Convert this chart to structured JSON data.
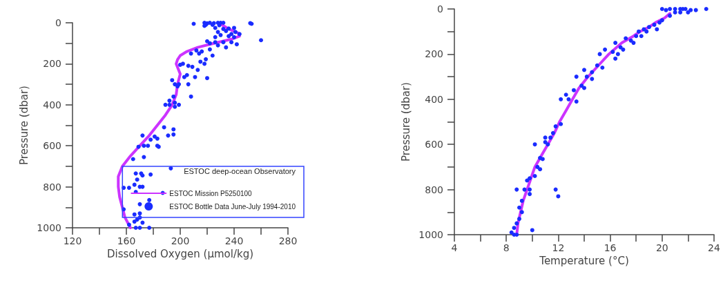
{
  "chart_data": [
    {
      "type": "scatter",
      "xlabel": "Dissolved Oxygen (µmol/kg)",
      "ylabel": "Pressure (dbar)",
      "legend_title": "ESTOC deep-ocean Observatory",
      "legend": "bottom right",
      "xlim": [
        120,
        280
      ],
      "xticks": [
        120,
        {
          "value": 140,
          "label": null
        },
        160,
        {
          "value": 180,
          "label": null
        },
        200,
        {
          "value": 220,
          "label": null
        },
        240,
        {
          "value": 260,
          "label": null
        },
        280
      ],
      "ylim": [
        1000,
        0
      ],
      "yticks": [
        0,
        {
          "value": 100,
          "label": null
        },
        200,
        {
          "value": 300,
          "label": null
        },
        400,
        {
          "value": 500,
          "label": null
        },
        600,
        {
          "value": 700,
          "label": null
        },
        800,
        {
          "value": 900,
          "label": null
        },
        1000
      ],
      "series": [
        {
          "name": "ESTOC Mission P5250100",
          "type": "line",
          "marker": "none",
          "color": "#cc33ff",
          "x": [
            231,
            236,
            243,
            244,
            238,
            225,
            213,
            205,
            200,
            198,
            197,
            200,
            198,
            197,
            194,
            189,
            183,
            177,
            170,
            163,
            157,
            154,
            154,
            155,
            157,
            159,
            163
          ],
          "values": [
            10,
            30,
            50,
            65,
            80,
            100,
            120,
            140,
            160,
            180,
            200,
            250,
            300,
            350,
            400,
            450,
            500,
            550,
            600,
            650,
            700,
            750,
            800,
            850,
            900,
            950,
            1000
          ]
        },
        {
          "name": "ESTOC Bottle Data June-July 1994-2010",
          "type": "scatter",
          "marker": "circle",
          "color": "#1a2cff",
          "x": [
            210,
            218,
            220,
            222,
            225,
            228,
            230,
            232,
            219,
            224,
            229,
            252,
            253,
            218,
            226,
            232,
            236,
            240,
            241,
            228,
            234,
            238,
            244,
            230,
            236,
            226,
            240,
            260,
            220,
            226,
            232,
            238,
            242,
            222,
            228,
            234,
            222,
            216,
            212,
            208,
            214,
            224,
            219,
            215,
            218,
            202,
            200,
            206,
            209,
            213,
            211,
            203,
            205,
            220,
            194,
            196,
            199,
            206,
            198,
            208,
            195,
            192,
            189,
            192,
            196,
            199,
            196,
            188,
            195,
            195,
            191,
            181,
            172,
            183,
            178,
            183,
            176,
            173,
            169,
            184,
            193,
            165,
            173,
            167,
            171,
            168,
            178,
            172,
            166,
            170,
            172,
            162,
            158,
            187,
            167,
            177,
            170,
            158,
            166,
            170,
            170,
            172,
            166,
            167,
            170,
            177,
            162,
            168
          ],
          "values": [
            5,
            0,
            3,
            0,
            2,
            0,
            0,
            0,
            10,
            10,
            12,
            2,
            5,
            15,
            25,
            30,
            28,
            25,
            45,
            45,
            40,
            55,
            55,
            60,
            65,
            70,
            70,
            85,
            90,
            95,
            95,
            95,
            105,
            100,
            110,
            120,
            130,
            140,
            135,
            150,
            150,
            160,
            178,
            190,
            200,
            200,
            205,
            210,
            215,
            230,
            265,
            265,
            255,
            270,
            280,
            300,
            300,
            300,
            310,
            360,
            360,
            380,
            400,
            400,
            390,
            400,
            410,
            510,
            520,
            545,
            550,
            555,
            550,
            565,
            570,
            600,
            600,
            600,
            605,
            605,
            710,
            665,
            655,
            735,
            735,
            765,
            740,
            745,
            790,
            800,
            800,
            805,
            805,
            830,
            825,
            865,
            885,
            910,
            935,
            930,
            950,
            975,
            970,
            1000,
            1000,
            1000,
            985,
            960
          ]
        }
      ]
    },
    {
      "type": "scatter",
      "xlabel": "Temperature (°C)",
      "ylabel": "Pressure (dbar)",
      "xlim": [
        4,
        24
      ],
      "xticks": [
        4,
        {
          "value": 6,
          "label": null
        },
        8,
        {
          "value": 10,
          "label": null
        },
        12,
        {
          "value": 14,
          "label": null
        },
        16,
        {
          "value": 18,
          "label": null
        },
        20,
        {
          "value": 22,
          "label": null
        },
        24
      ],
      "ylim": [
        1000,
        0
      ],
      "yticks": [
        0,
        {
          "value": 100,
          "label": null
        },
        200,
        {
          "value": 300,
          "label": null
        },
        400,
        {
          "value": 500,
          "label": null
        },
        600,
        {
          "value": 700,
          "label": null
        },
        800,
        {
          "value": 900,
          "label": null
        },
        1000
      ],
      "series": [
        {
          "type": "line",
          "marker": "none",
          "color": "#cc33ff",
          "x": [
            20.6,
            20.2,
            19.5,
            19.0,
            18.3,
            17.8,
            16.9,
            15.9,
            15.1,
            14.3,
            13.6,
            13.1,
            12.6,
            12.1,
            11.7,
            11.2,
            10.7,
            10.2,
            9.9,
            9.6,
            9.3,
            9.1,
            8.9,
            8.8
          ],
          "values": [
            20,
            40,
            60,
            80,
            100,
            120,
            150,
            200,
            250,
            300,
            350,
            400,
            450,
            500,
            550,
            600,
            650,
            700,
            750,
            800,
            850,
            900,
            950,
            1000
          ]
        },
        {
          "type": "scatter",
          "marker": "circle",
          "color": "#1a2cff",
          "x": [
            20.0,
            20.3,
            20.6,
            21.0,
            21.4,
            21.6,
            21.8,
            22.2,
            22.6,
            23.4,
            21.0,
            21.4,
            22.0,
            20.6,
            20.0,
            19.8,
            19.4,
            19.0,
            18.6,
            18.2,
            18.8,
            19.6,
            18.0,
            17.6,
            17.2,
            17.8,
            18.4,
            16.4,
            16.8,
            16.2,
            16.6,
            15.6,
            17.0,
            15.2,
            16.4,
            15.0,
            15.4,
            14.0,
            14.6,
            13.4,
            14.2,
            14.6,
            13.8,
            13.2,
            14.0,
            12.6,
            12.8,
            13.4,
            12.2,
            12.2,
            11.8,
            11.6,
            11.4,
            11.0,
            10.2,
            11.2,
            11.0,
            10.6,
            10.8,
            10.4,
            10.6,
            10.2,
            9.8,
            9.6,
            9.4,
            9.8,
            8.8,
            11.8,
            12.0,
            9.8,
            9.2,
            9.0,
            9.2,
            9.0,
            8.8,
            8.6,
            8.4,
            8.6,
            10.0,
            8.8
          ],
          "values": [
            0,
            5,
            0,
            0,
            0,
            0,
            0,
            5,
            5,
            0,
            15,
            15,
            15,
            30,
            50,
            60,
            70,
            80,
            90,
            100,
            100,
            90,
            120,
            140,
            130,
            150,
            120,
            150,
            170,
            190,
            200,
            180,
            180,
            200,
            220,
            250,
            260,
            270,
            280,
            300,
            300,
            310,
            340,
            360,
            350,
            380,
            400,
            410,
            400,
            510,
            520,
            550,
            570,
            570,
            600,
            600,
            590,
            660,
            665,
            700,
            710,
            740,
            750,
            760,
            800,
            800,
            800,
            800,
            830,
            820,
            850,
            880,
            900,
            930,
            950,
            970,
            990,
            1000,
            980,
            1000
          ]
        }
      ]
    }
  ]
}
